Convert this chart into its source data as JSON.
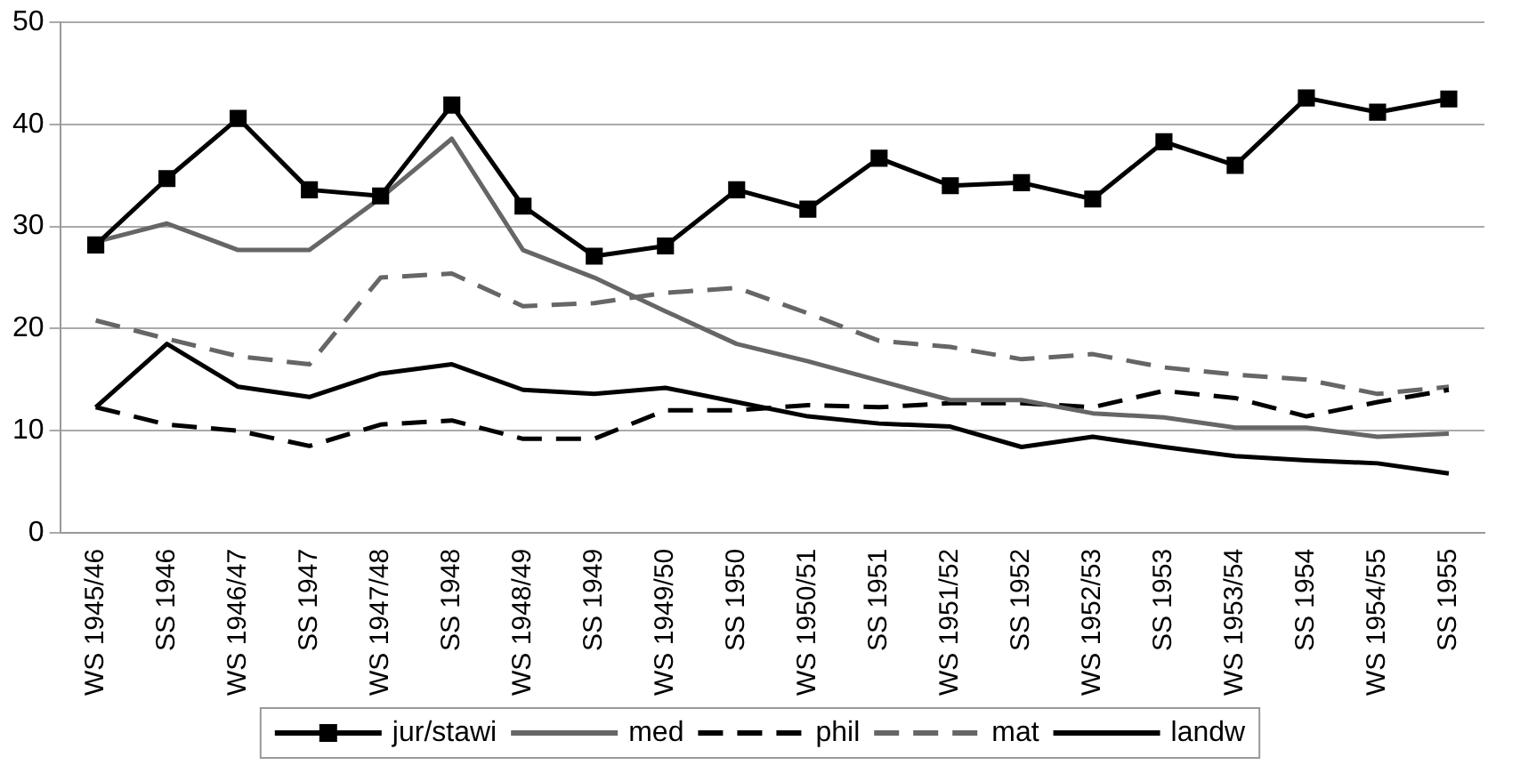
{
  "chart_data": {
    "type": "line",
    "categories": [
      "WS 1945/46",
      "SS 1946",
      "WS 1946/47",
      "SS 1947",
      "WS 1947/48",
      "SS 1948",
      "WS 1948/49",
      "SS 1949",
      "WS 1949/50",
      "SS 1950",
      "WS 1950/51",
      "SS 1951",
      "WS 1951/52",
      "SS 1952",
      "WS 1952/53",
      "SS 1953",
      "WS 1953/54",
      "SS 1954",
      "WS 1954/55",
      "SS 1955"
    ],
    "series": [
      {
        "name": "jur/stawi",
        "color": "#000000",
        "marker": "square",
        "line_style": "solid",
        "values": [
          28.2,
          34.7,
          40.6,
          33.6,
          33.0,
          41.9,
          32.0,
          27.1,
          28.1,
          33.6,
          31.7,
          36.7,
          34.0,
          34.3,
          32.7,
          38.3,
          36.0,
          42.6,
          41.2,
          42.5
        ]
      },
      {
        "name": "med",
        "color": "#666666",
        "marker": "none",
        "line_style": "solid",
        "values": [
          28.5,
          30.3,
          27.7,
          27.7,
          32.8,
          38.6,
          27.7,
          25.0,
          21.7,
          18.5,
          16.8,
          14.9,
          13.0,
          13.0,
          11.7,
          11.3,
          10.3,
          10.3,
          9.4,
          9.7
        ]
      },
      {
        "name": "phil",
        "color": "#000000",
        "marker": "none",
        "line_style": "dashed",
        "values": [
          12.3,
          10.6,
          10.0,
          8.5,
          10.6,
          11.0,
          9.2,
          9.2,
          12.0,
          12.0,
          12.5,
          12.3,
          12.7,
          12.7,
          12.3,
          13.9,
          13.2,
          11.4,
          12.8,
          14.0
        ]
      },
      {
        "name": "mat",
        "color": "#666666",
        "marker": "none",
        "line_style": "dashed",
        "values": [
          20.8,
          19.0,
          17.3,
          16.5,
          25.0,
          25.4,
          22.2,
          22.5,
          23.5,
          24.0,
          21.5,
          18.8,
          18.2,
          17.0,
          17.5,
          16.2,
          15.5,
          15.0,
          13.6,
          14.3
        ]
      },
      {
        "name": "landw",
        "color": "#000000",
        "marker": "none",
        "line_style": "solid",
        "values": [
          12.3,
          18.5,
          14.3,
          13.3,
          15.6,
          16.5,
          14.0,
          13.6,
          14.2,
          12.8,
          11.4,
          10.7,
          10.4,
          8.4,
          9.4,
          8.4,
          7.5,
          7.1,
          6.8,
          5.8
        ]
      }
    ],
    "ylim": [
      0,
      50
    ],
    "yticks": [
      0,
      10,
      20,
      30,
      40,
      50
    ],
    "grid": "y",
    "legend": "bottom"
  }
}
